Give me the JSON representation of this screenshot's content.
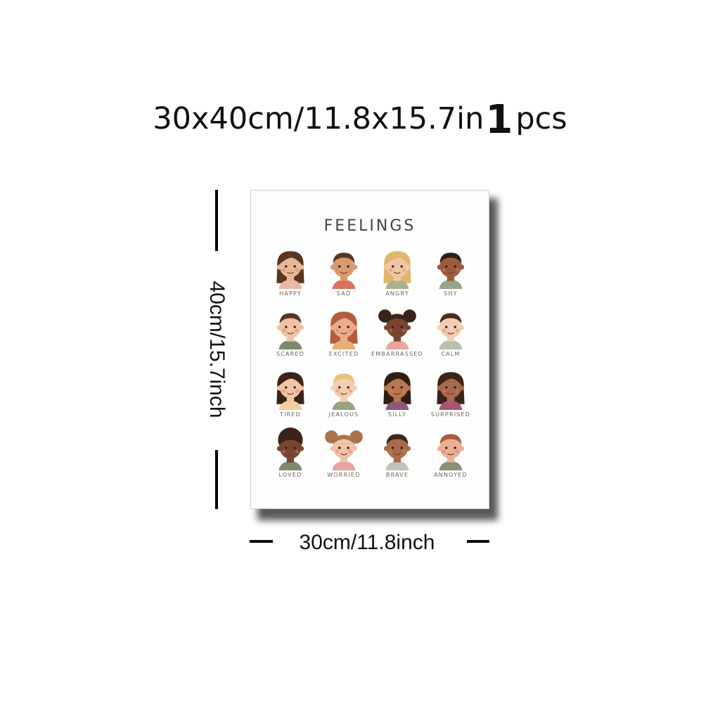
{
  "header": {
    "size_text": "30x40cm/11.8x15.7in",
    "quantity": "1",
    "unit": "pcs"
  },
  "poster": {
    "title": "FEELINGS",
    "faces": [
      {
        "label": "HAPPY",
        "skin": "#e8b896",
        "hair": "#5a3522",
        "shirt": "#e9b9a6",
        "hair_style": "long"
      },
      {
        "label": "SAD",
        "skin": "#d99a6f",
        "hair": "#5a3522",
        "shirt": "#d5735e",
        "hair_style": "short"
      },
      {
        "label": "ANGRY",
        "skin": "#f0c7a6",
        "hair": "#e2b56b",
        "shirt": "#a9b28f",
        "hair_style": "long"
      },
      {
        "label": "SHY",
        "skin": "#9b5a3c",
        "hair": "#2f1d16",
        "shirt": "#9aa48d",
        "hair_style": "short"
      },
      {
        "label": "SCARED",
        "skin": "#f1c2a2",
        "hair": "#5a3522",
        "shirt": "#7d8b6a",
        "hair_style": "short"
      },
      {
        "label": "EXCITED",
        "skin": "#e9ad8b",
        "hair": "#b45c3b",
        "shirt": "#e2b273",
        "hair_style": "long"
      },
      {
        "label": "EMBARRASSED",
        "skin": "#7a4530",
        "hair": "#3a231a",
        "shirt": "#e9a79a",
        "hair_style": "puffs"
      },
      {
        "label": "CALM",
        "skin": "#f3cdb1",
        "hair": "#4a2d20",
        "shirt": "#b9bfb0",
        "hair_style": "short"
      },
      {
        "label": "TIRED",
        "skin": "#f1c4a3",
        "hair": "#3a2419",
        "shirt": "#f0cf9c",
        "hair_style": "long"
      },
      {
        "label": "JEALOUS",
        "skin": "#f3cfb2",
        "hair": "#e9c07a",
        "shirt": "#9aa283",
        "hair_style": "short"
      },
      {
        "label": "SILLY",
        "skin": "#b87650",
        "hair": "#2f1d16",
        "shirt": "#8a5a7a",
        "hair_style": "long"
      },
      {
        "label": "SURPRISED",
        "skin": "#a86a4a",
        "hair": "#3a2419",
        "shirt": "#a8546f",
        "hair_style": "long"
      },
      {
        "label": "LOVED",
        "skin": "#7a4530",
        "hair": "#3a231a",
        "shirt": "#7f8a68",
        "hair_style": "curly"
      },
      {
        "label": "WORRIED",
        "skin": "#f1c2a6",
        "hair": "#a9734d",
        "shirt": "#e6a3a0",
        "hair_style": "puffs"
      },
      {
        "label": "BRAVE",
        "skin": "#a86c4a",
        "hair": "#3a2419",
        "shirt": "#c2c2b8",
        "hair_style": "short"
      },
      {
        "label": "ANNOYED",
        "skin": "#eab095",
        "hair": "#b15a3a",
        "shirt": "#8a9272",
        "hair_style": "short"
      }
    ]
  },
  "dimensions": {
    "height_label": "40cm/15.7inch",
    "width_label": "30cm/11.8inch"
  }
}
